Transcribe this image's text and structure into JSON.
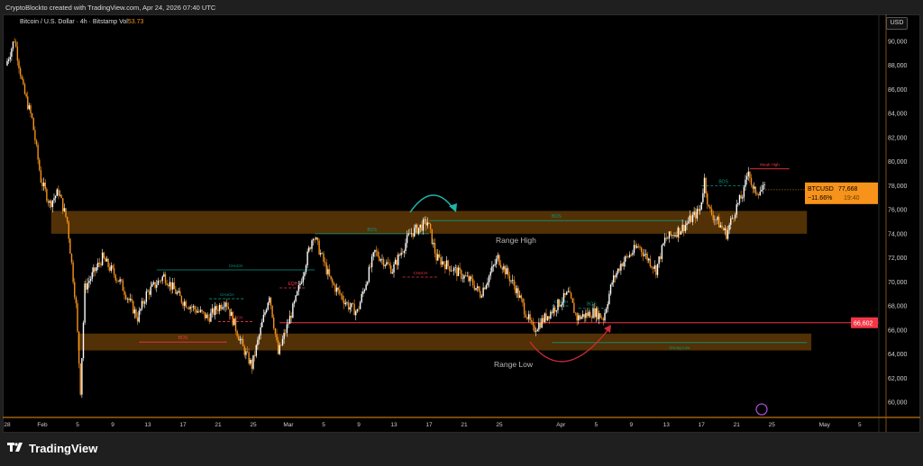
{
  "header": {
    "attribution": "CryptoBlockto created with TradingView.com, Apr 24, 2026 07:40 UTC"
  },
  "legend": {
    "symbol_desc": "Bitcoin / U.S. Dollar · 4h · Bitstamp",
    "vol_label": "Vol",
    "vol_value": "53.73"
  },
  "price_axis": {
    "currency_button": "USD",
    "ticks": [
      "60,000",
      "62,000",
      "64,000",
      "66,000",
      "68,000",
      "70,000",
      "72,000",
      "74,000",
      "76,000",
      "78,000",
      "80,000",
      "82,000",
      "84,000",
      "86,000",
      "88,000",
      "90,000"
    ]
  },
  "time_axis": {
    "ticks": [
      {
        "label": "28",
        "date": "2026-01-28"
      },
      {
        "label": "Feb",
        "date": "2026-02-01"
      },
      {
        "label": "5",
        "date": "2026-02-05"
      },
      {
        "label": "9",
        "date": "2026-02-09"
      },
      {
        "label": "13",
        "date": "2026-02-13"
      },
      {
        "label": "17",
        "date": "2026-02-17"
      },
      {
        "label": "21",
        "date": "2026-02-21"
      },
      {
        "label": "25",
        "date": "2026-02-25"
      },
      {
        "label": "Mar",
        "date": "2026-03-01"
      },
      {
        "label": "5",
        "date": "2026-03-05"
      },
      {
        "label": "9",
        "date": "2026-03-09"
      },
      {
        "label": "13",
        "date": "2026-03-13"
      },
      {
        "label": "17",
        "date": "2026-03-17"
      },
      {
        "label": "21",
        "date": "2026-03-21"
      },
      {
        "label": "25",
        "date": "2026-03-25"
      },
      {
        "label": "Apr",
        "date": "2026-04-01"
      },
      {
        "label": "5",
        "date": "2026-04-05"
      },
      {
        "label": "9",
        "date": "2026-04-09"
      },
      {
        "label": "13",
        "date": "2026-04-13"
      },
      {
        "label": "17",
        "date": "2026-04-17"
      },
      {
        "label": "21",
        "date": "2026-04-21"
      },
      {
        "label": "25",
        "date": "2026-04-25"
      },
      {
        "label": "May",
        "date": "2026-05-01"
      },
      {
        "label": "5",
        "date": "2026-05-05"
      }
    ]
  },
  "current_price": {
    "symbol": "BTCUSD",
    "price": "77,668",
    "change": "−11.66%",
    "countdown": "19:40",
    "color": "#f7931a"
  },
  "level_tag": {
    "price": "66,602",
    "color": "#f23645"
  },
  "footer": {
    "brand": "TradingView",
    "logo_mark": "TV"
  },
  "colors": {
    "up": "#ffffff",
    "down": "#f7931a",
    "zone": "#5a3606",
    "bull": "#089981",
    "bear": "#f23645"
  },
  "chart_data": {
    "type": "candlestick",
    "symbol": "BTCUSD",
    "interval": "4h",
    "ylim": [
      59000,
      91500
    ],
    "close_path": [
      [
        "2026-01-28",
        88000
      ],
      [
        "2026-01-29",
        90200
      ],
      [
        "2026-01-30",
        86000
      ],
      [
        "2026-01-31",
        83500
      ],
      [
        "2026-02-01",
        78500
      ],
      [
        "2026-02-02",
        76500
      ],
      [
        "2026-02-03",
        77500
      ],
      [
        "2026-02-04",
        75000
      ],
      [
        "2026-02-05",
        68000
      ],
      [
        "2026-02-05.5",
        61000
      ],
      [
        "2026-02-06",
        69500
      ],
      [
        "2026-02-08",
        72000
      ],
      [
        "2026-02-10",
        70000
      ],
      [
        "2026-02-12",
        67000
      ],
      [
        "2026-02-13",
        69000
      ],
      [
        "2026-02-15",
        70500
      ],
      [
        "2026-02-17",
        68500
      ],
      [
        "2026-02-20",
        67000
      ],
      [
        "2026-02-22",
        68500
      ],
      [
        "2026-02-24",
        64500
      ],
      [
        "2026-02-25",
        63000
      ],
      [
        "2026-02-27",
        69000
      ],
      [
        "2026-02-28",
        64000
      ],
      [
        "2026-03-02",
        68500
      ],
      [
        "2026-03-04",
        74000
      ],
      [
        "2026-03-06",
        70000
      ],
      [
        "2026-03-08",
        68000
      ],
      [
        "2026-03-09",
        67500
      ],
      [
        "2026-03-10",
        70000
      ],
      [
        "2026-03-11",
        72500
      ],
      [
        "2026-03-13",
        71000
      ],
      [
        "2026-03-15",
        74000
      ],
      [
        "2026-03-17",
        75000
      ],
      [
        "2026-03-18",
        72000
      ],
      [
        "2026-03-20",
        71000
      ],
      [
        "2026-03-22",
        70000
      ],
      [
        "2026-03-23",
        69000
      ],
      [
        "2026-03-25",
        72000
      ],
      [
        "2026-03-27",
        69500
      ],
      [
        "2026-03-29",
        66000
      ],
      [
        "2026-03-31",
        67500
      ],
      [
        "2026-04-02",
        69000
      ],
      [
        "2026-04-03",
        67000
      ],
      [
        "2026-04-05",
        67500
      ],
      [
        "2026-04-06",
        67000
      ],
      [
        "2026-04-07",
        70000
      ],
      [
        "2026-04-08",
        71500
      ],
      [
        "2026-04-10",
        73000
      ],
      [
        "2026-04-12",
        71000
      ],
      [
        "2026-04-13",
        73500
      ],
      [
        "2026-04-15",
        74500
      ],
      [
        "2026-04-17",
        76000
      ],
      [
        "2026-04-17.5",
        78500
      ],
      [
        "2026-04-18",
        76000
      ],
      [
        "2026-04-20",
        74000
      ],
      [
        "2026-04-21",
        76000
      ],
      [
        "2026-04-22",
        77500
      ],
      [
        "2026-04-22.5",
        79500
      ],
      [
        "2026-04-23",
        77500
      ],
      [
        "2026-04-24.3",
        77668
      ]
    ],
    "zones": [
      {
        "label": "Range High",
        "from": "2026-02-02",
        "to": "2026-04-29",
        "low": 74000,
        "high": 75900
      },
      {
        "label": "Range Low",
        "from": "2026-02-05",
        "to": "2026-04-29.5",
        "low": 64300,
        "high": 65700
      }
    ],
    "annotations": [
      {
        "label": "CHoCH",
        "color": "#089981",
        "from": "2026-02-14",
        "to": "2026-03-04",
        "price": 71000,
        "style": "solid"
      },
      {
        "label": "BOS",
        "color": "#f23645",
        "from": "2026-02-12",
        "to": "2026-02-22",
        "price": 65000,
        "style": "solid"
      },
      {
        "label": "BOS",
        "color": "#089981",
        "from": "2026-03-04",
        "to": "2026-03-17",
        "price": 74000,
        "style": "solid"
      },
      {
        "label": "BOS",
        "color": "#089981",
        "from": "2026-03-17",
        "to": "2026-04-15",
        "price": 75100,
        "style": "solid"
      },
      {
        "label": "BOS",
        "color": "#089981",
        "from": "2026-04-17",
        "to": "2026-04-22",
        "price": 78000,
        "style": "dashed"
      },
      {
        "label": "Weak High",
        "color": "#f23645",
        "from": "2026-04-22.5",
        "to": "2026-04-27",
        "price": 79400,
        "style": "solid"
      },
      {
        "label": "Strong Low",
        "color": "#089981",
        "from": "2026-03-31",
        "to": "2026-04-29",
        "price": 64950,
        "style": "solid"
      },
      {
        "label": "CHoCH",
        "color": "#089981",
        "from": "2026-02-20",
        "to": "2026-02-24",
        "price": 68600,
        "style": "dashed"
      },
      {
        "label": "CHoCH",
        "color": "#f23645",
        "from": "2026-02-21",
        "to": "2026-02-25",
        "price": 66700,
        "style": "dashed"
      },
      {
        "label": "EQH",
        "color": "#f23645",
        "from": "2026-02-28",
        "to": "2026-03-03",
        "price": 69500,
        "style": "dashed"
      },
      {
        "label": "CHoCH",
        "color": "#f23645",
        "from": "2026-03-14",
        "to": "2026-03-18",
        "price": 70400,
        "style": "dashed"
      },
      {
        "label": "CHoCH",
        "color": "#089981",
        "from": "2026-03-31",
        "to": "2026-04-02",
        "price": 68000,
        "style": "dashed"
      },
      {
        "label": "BOS",
        "color": "#089981",
        "from": "2026-04-03",
        "to": "2026-04-06",
        "price": 67800,
        "style": "dashed"
      }
    ],
    "horizontal_line": {
      "price": 66602,
      "from": "2026-02-28",
      "color": "#f23645"
    }
  }
}
